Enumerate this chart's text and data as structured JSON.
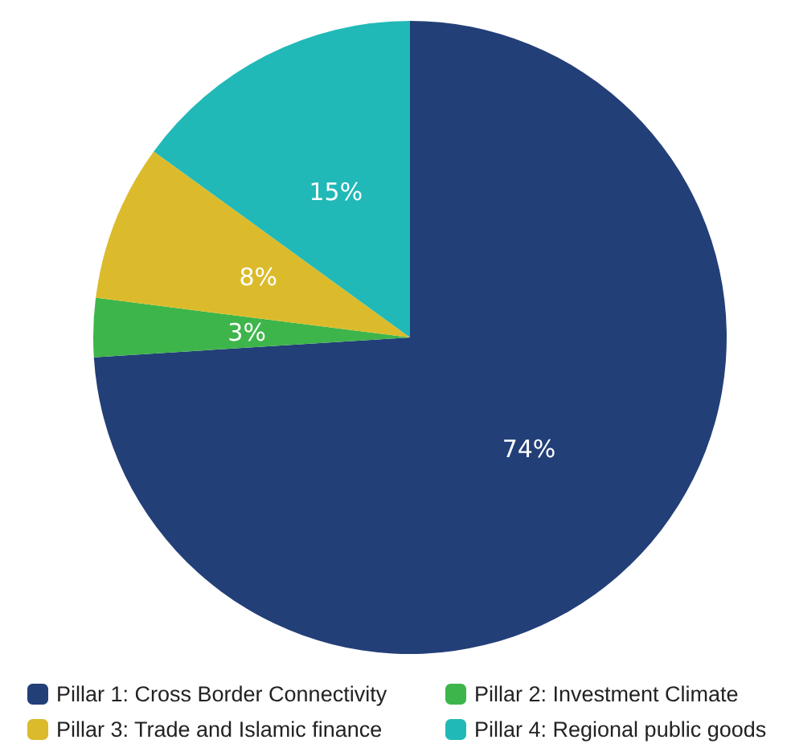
{
  "chart_data": {
    "type": "pie",
    "categories": [
      "Pillar 1: Cross Border Connectivity",
      "Pillar 2: Investment Climate",
      "Pillar 3: Trade and Islamic finance",
      "Pillar 4: Regional public goods"
    ],
    "values": [
      74,
      3,
      8,
      15
    ],
    "value_labels": [
      "74%",
      "3%",
      "8%",
      "15%"
    ],
    "colors": [
      "#233f78",
      "#3db54a",
      "#dbbb2b",
      "#20b9b7"
    ],
    "legend": "bottom"
  }
}
